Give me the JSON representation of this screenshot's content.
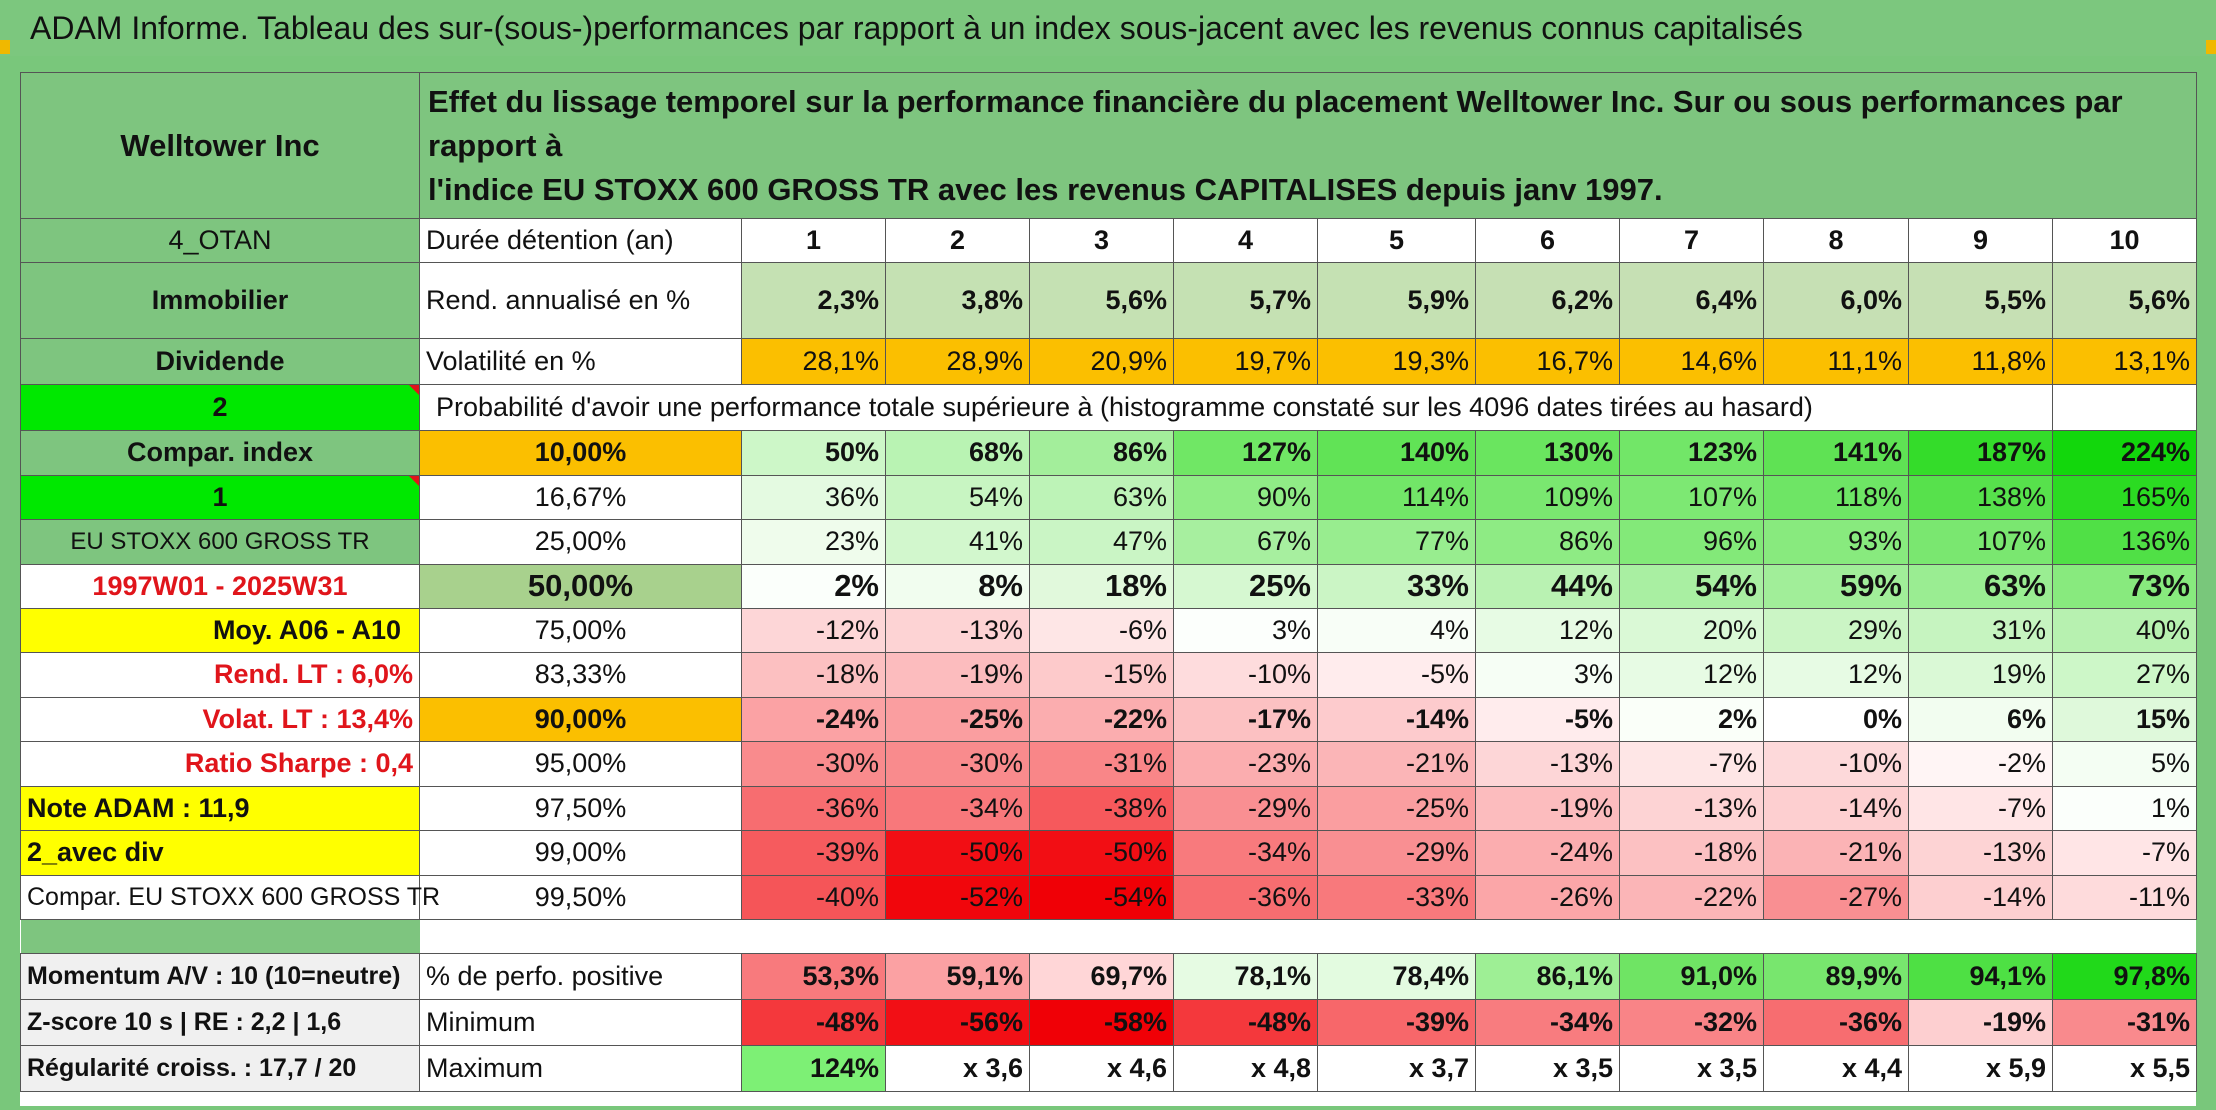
{
  "title": "ADAM Informe. Tableau des sur-(sous-)performances par rapport à un index sous-jacent avec les revenus connus capitalisés",
  "header": {
    "company": "Welltower Inc",
    "description_line1": "Effet du lissage temporel sur la performance financière du placement Welltower Inc. Sur ou sous performances par rapport à",
    "description_line2": "l'indice EU STOXX 600 GROSS TR avec les revenus CAPITALISES depuis janv 1997."
  },
  "side_labels": {
    "code": "4_OTAN",
    "sector": "Immobilier",
    "income_type": "Dividende",
    "selector_a": "2",
    "compar_index": "Compar. index",
    "selector_b": "1",
    "index_name": "EU STOXX 600 GROSS TR",
    "period": "1997W01 - 2025W31",
    "moy": "Moy. A06 - A10",
    "rend_lt": "Rend. LT :   6,0%",
    "volat_lt": "Volat. LT :   13,4%",
    "sharpe": "Ratio Sharpe :   0,4",
    "note": "Note ADAM : 11,9",
    "variant": "2_avec div",
    "compar_full": "Compar. EU STOXX 600 GROSS TR",
    "momentum": "Momentum A/V : 10 (10=neutre)",
    "zscore": "Z-score 10 s | RE : 2,2 | 1,6",
    "regularite": "Régularité croiss. : 17,7 / 20"
  },
  "rows": {
    "duree_label": "Durée détention (an)",
    "years": [
      "1",
      "2",
      "3",
      "4",
      "5",
      "6",
      "7",
      "8",
      "9",
      "10"
    ],
    "rend_label": "Rend. annualisé en %",
    "rend": [
      "2,3%",
      "3,8%",
      "5,6%",
      "5,7%",
      "5,9%",
      "6,2%",
      "6,4%",
      "6,0%",
      "5,5%",
      "5,6%"
    ],
    "vol_label": "Volatilité en %",
    "vol": [
      "28,1%",
      "28,9%",
      "20,9%",
      "19,7%",
      "19,3%",
      "16,7%",
      "14,6%",
      "11,1%",
      "11,8%",
      "13,1%"
    ],
    "prob_label": "Probabilité d'avoir une performance totale supérieure à (histogramme constaté sur les 4096 dates tirées au hasard)"
  },
  "quantiles": [
    {
      "p": "10,00%",
      "v": [
        "50%",
        "68%",
        "86%",
        "127%",
        "140%",
        "130%",
        "123%",
        "141%",
        "187%",
        "224%"
      ]
    },
    {
      "p": "16,67%",
      "v": [
        "36%",
        "54%",
        "63%",
        "90%",
        "114%",
        "109%",
        "107%",
        "118%",
        "138%",
        "165%"
      ]
    },
    {
      "p": "25,00%",
      "v": [
        "23%",
        "41%",
        "47%",
        "67%",
        "77%",
        "86%",
        "96%",
        "93%",
        "107%",
        "136%"
      ]
    },
    {
      "p": "50,00%",
      "v": [
        "2%",
        "8%",
        "18%",
        "25%",
        "33%",
        "44%",
        "54%",
        "59%",
        "63%",
        "73%"
      ]
    },
    {
      "p": "75,00%",
      "v": [
        "-12%",
        "-13%",
        "-6%",
        "3%",
        "4%",
        "12%",
        "20%",
        "29%",
        "31%",
        "40%"
      ]
    },
    {
      "p": "83,33%",
      "v": [
        "-18%",
        "-19%",
        "-15%",
        "-10%",
        "-5%",
        "3%",
        "12%",
        "12%",
        "19%",
        "27%"
      ]
    },
    {
      "p": "90,00%",
      "v": [
        "-24%",
        "-25%",
        "-22%",
        "-17%",
        "-14%",
        "-5%",
        "2%",
        "0%",
        "6%",
        "15%"
      ]
    },
    {
      "p": "95,00%",
      "v": [
        "-30%",
        "-30%",
        "-31%",
        "-23%",
        "-21%",
        "-13%",
        "-7%",
        "-10%",
        "-2%",
        "5%"
      ]
    },
    {
      "p": "97,50%",
      "v": [
        "-36%",
        "-34%",
        "-38%",
        "-29%",
        "-25%",
        "-19%",
        "-13%",
        "-14%",
        "-7%",
        "1%"
      ]
    },
    {
      "p": "99,00%",
      "v": [
        "-39%",
        "-50%",
        "-50%",
        "-34%",
        "-29%",
        "-24%",
        "-18%",
        "-21%",
        "-13%",
        "-7%"
      ]
    },
    {
      "p": "99,50%",
      "v": [
        "-40%",
        "-52%",
        "-54%",
        "-36%",
        "-33%",
        "-26%",
        "-22%",
        "-27%",
        "-14%",
        "-11%"
      ]
    }
  ],
  "stats": {
    "pos_label": "% de perfo. positive",
    "pos": [
      "53,3%",
      "59,1%",
      "69,7%",
      "78,1%",
      "78,4%",
      "86,1%",
      "91,0%",
      "89,9%",
      "94,1%",
      "97,8%"
    ],
    "min_label": "Minimum",
    "min": [
      "-48%",
      "-56%",
      "-58%",
      "-48%",
      "-39%",
      "-34%",
      "-32%",
      "-36%",
      "-19%",
      "-31%"
    ],
    "max_label": "Maximum",
    "max": [
      "124%",
      "x 3,6",
      "x 4,6",
      "x 4,8",
      "x 3,7",
      "x 3,5",
      "x 3,5",
      "x 4,4",
      "x 5,9",
      "x 5,5"
    ]
  },
  "colors": {
    "quantile_cells": [
      [
        "#cdf7c8",
        "#b9f3b3",
        "#a3ee9b",
        "#70e765",
        "#61e356",
        "#6ae55f",
        "#72e668",
        "#5fe254",
        "#34dc2a",
        "#12d70c"
      ],
      [
        "#e4fae1",
        "#c8f5c2",
        "#bdf3b7",
        "#90ec86",
        "#72e668",
        "#7ae770",
        "#7de873",
        "#6ee565",
        "#57e14c",
        "#2bdb22"
      ],
      [
        "#effcec",
        "#d2f7cd",
        "#caf5c5",
        "#a7ef9f",
        "#98ed8f",
        "#8eeb84",
        "#83e979",
        "#88ea7e",
        "#7ae770",
        "#50e046"
      ],
      [
        "#fbfffb",
        "#f1fdef",
        "#e1f9dc",
        "#d6f8d1",
        "#cbf5c5",
        "#b9f2b2",
        "#a9efa2",
        "#a1ee99",
        "#9aed92",
        "#88ea7e"
      ],
      [
        "#fdd6d7",
        "#fdd3d4",
        "#fee6e6",
        "#fcfffc",
        "#f8fef7",
        "#e7fbe4",
        "#daf9d6",
        "#cbf5c5",
        "#c6f4c0",
        "#b7f1b0"
      ],
      [
        "#fcc0c1",
        "#fcbcbe",
        "#fdcacb",
        "#fedcdd",
        "#ffeced",
        "#f6fef5",
        "#e7fbe4",
        "#e7fbe4",
        "#daf9d6",
        "#cdf7c8"
      ],
      [
        "#fba2a4",
        "#fa9ea0",
        "#fbadaf",
        "#fcc1c2",
        "#fdcbcd",
        "#ffeced",
        "#fafff9",
        "#ffffff",
        "#f2fdf0",
        "#dff9db"
      ],
      [
        "#f98b8d",
        "#f98b8d",
        "#f98688",
        "#fbadaf",
        "#fbb5b7",
        "#fdd6d7",
        "#fee6e6",
        "#fdd9da",
        "#fff5f5",
        "#f4fef3"
      ],
      [
        "#f76d70",
        "#f8787b",
        "#f6595c",
        "#f98f92",
        "#fa9ea0",
        "#fcbcbe",
        "#fdd3d4",
        "#fdcfd0",
        "#ffe5e6",
        "#fbfffb"
      ],
      [
        "#f65b5e",
        "#f20e14",
        "#f20e14",
        "#f87a7d",
        "#f98f92",
        "#fbadaf",
        "#fcc1c2",
        "#fbb3b5",
        "#fdd3d4",
        "#ffe5e6"
      ],
      [
        "#f55558",
        "#f1060c",
        "#f00006",
        "#f76d70",
        "#f8797c",
        "#fba6a8",
        "#fbb5b7",
        "#f98f92",
        "#fdcfd0",
        "#fedbdc"
      ]
    ],
    "pos_cells": [
      "#f87a7d",
      "#fba1a3",
      "#ffd6d7",
      "#e6fbe3",
      "#e3fbe0",
      "#9eef95",
      "#6fe464",
      "#78e66e",
      "#4ee044",
      "#21d91a"
    ],
    "min_cells": [
      "#f4383c",
      "#f20f15",
      "#f00006",
      "#f4383c",
      "#f7676a",
      "#f87c7f",
      "#f98487",
      "#f76d70",
      "#fdcfd0",
      "#f98a8d"
    ],
    "max_first": "#7df075"
  }
}
